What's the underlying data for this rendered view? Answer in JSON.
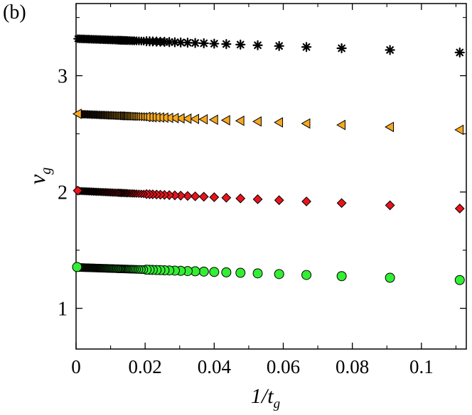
{
  "panel_label": "(b)",
  "chart_data": {
    "type": "scatter",
    "title": "",
    "xlabel": "1/t",
    "xlabel_sub": "g",
    "ylabel": "v",
    "ylabel_sub": "g",
    "xlim": [
      0,
      0.113
    ],
    "ylim": [
      0.65,
      3.62
    ],
    "xticks": [
      0,
      0.02,
      0.04,
      0.06,
      0.08,
      0.1
    ],
    "xtick_labels": [
      "0",
      "0.02",
      "0.04",
      "0.06",
      "0.08",
      "0.1"
    ],
    "yticks": [
      1,
      2,
      3
    ],
    "ytick_labels": [
      "1",
      "2",
      "3"
    ],
    "x": [
      0.1111,
      0.0909,
      0.0769,
      0.0667,
      0.0588,
      0.0526,
      0.0476,
      0.0435,
      0.04,
      0.037,
      0.0345,
      0.0323,
      0.0303,
      0.0286,
      0.027,
      0.0256,
      0.0244,
      0.0233,
      0.0222,
      0.0213,
      0.0204,
      0.0196,
      0.0189,
      0.0182,
      0.0175,
      0.0169,
      0.0164,
      0.0159,
      0.0154,
      0.0149,
      0.0145,
      0.0141,
      0.0137,
      0.0133,
      0.013,
      0.0127,
      0.0123,
      0.012,
      0.0115,
      0.011,
      0.0105,
      0.01,
      0.0095,
      0.009,
      0.0085,
      0.008,
      0.0075,
      0.007,
      0.0065,
      0.006,
      0.0055,
      0.005,
      0.0045,
      0.004,
      0.0035,
      0.003,
      0.0025,
      0.002,
      0.0015,
      0.001,
      0.0005
    ],
    "series": [
      {
        "name": "stars",
        "marker": "asterisk",
        "color": "#000000",
        "v0": 3.318,
        "slope": 1.07
      },
      {
        "name": "triangles",
        "marker": "triangle-left",
        "color": "#f7a820",
        "v0": 2.67,
        "slope": 1.22
      },
      {
        "name": "diamonds",
        "marker": "diamond",
        "color": "#e8141c",
        "v0": 2.01,
        "slope": 1.37
      },
      {
        "name": "circles",
        "marker": "circle",
        "color": "#33ee33",
        "v0": 1.352,
        "slope": 0.98
      }
    ],
    "lone_markers": [
      {
        "series": "triangles",
        "x": 0.0005,
        "y": 2.672
      },
      {
        "series": "diamonds",
        "x": 0.0005,
        "y": 2.012
      },
      {
        "series": "circles",
        "x": 0.0003,
        "y": 1.355
      }
    ]
  }
}
